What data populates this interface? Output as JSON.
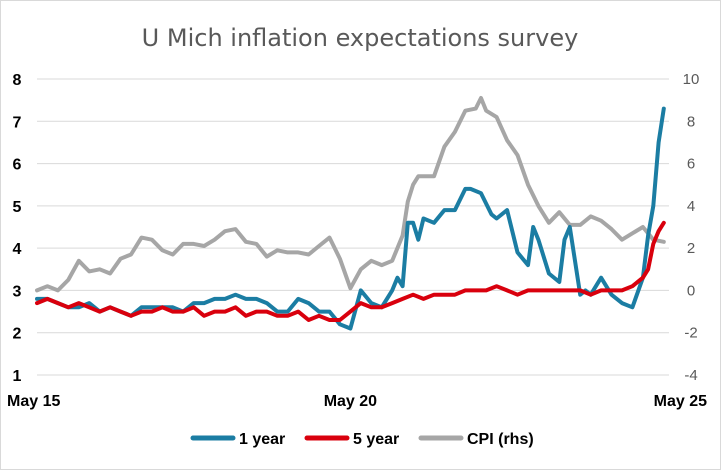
{
  "chart_data": {
    "type": "line",
    "title": "U Mich inflation expectations survey",
    "xlabel": "",
    "ylabel": "",
    "y2label": "",
    "grid": true,
    "legend_position": "bottom",
    "ylim": [
      1,
      8
    ],
    "y2lim": [
      -4,
      10
    ],
    "yticks": [
      "1",
      "2",
      "3",
      "4",
      "5",
      "6",
      "7",
      "8"
    ],
    "y2ticks": [
      "-4",
      "-2",
      "0",
      "2",
      "4",
      "6",
      "8",
      "10"
    ],
    "x_tick_labels": [
      "May 15",
      "May 20",
      "May 25"
    ],
    "x_tick_dates": [
      "2015-05",
      "2020-05",
      "2025-05"
    ],
    "x_range": [
      "2015-05",
      "2025-06"
    ],
    "series": [
      {
        "name": "1 year",
        "axis": "left",
        "color": "#1b7da3",
        "x": [
          "2015-05",
          "2015-07",
          "2015-09",
          "2015-11",
          "2016-01",
          "2016-03",
          "2016-05",
          "2016-07",
          "2016-09",
          "2016-11",
          "2017-01",
          "2017-03",
          "2017-05",
          "2017-07",
          "2017-09",
          "2017-11",
          "2018-01",
          "2018-03",
          "2018-05",
          "2018-07",
          "2018-09",
          "2018-11",
          "2019-01",
          "2019-03",
          "2019-05",
          "2019-07",
          "2019-09",
          "2019-11",
          "2020-01",
          "2020-03",
          "2020-05",
          "2020-07",
          "2020-09",
          "2020-11",
          "2021-01",
          "2021-02",
          "2021-03",
          "2021-04",
          "2021-05",
          "2021-06",
          "2021-07",
          "2021-09",
          "2021-11",
          "2022-01",
          "2022-03",
          "2022-04",
          "2022-06",
          "2022-08",
          "2022-09",
          "2022-11",
          "2023-01",
          "2023-03",
          "2023-04",
          "2023-05",
          "2023-07",
          "2023-09",
          "2023-10",
          "2023-11",
          "2024-01",
          "2024-02",
          "2024-03",
          "2024-05",
          "2024-07",
          "2024-09",
          "2024-11",
          "2025-01",
          "2025-02",
          "2025-03",
          "2025-04",
          "2025-05"
        ],
        "values": [
          2.8,
          2.8,
          2.7,
          2.6,
          2.6,
          2.7,
          2.5,
          2.6,
          2.5,
          2.4,
          2.6,
          2.6,
          2.6,
          2.6,
          2.5,
          2.7,
          2.7,
          2.8,
          2.8,
          2.9,
          2.8,
          2.8,
          2.7,
          2.5,
          2.5,
          2.8,
          2.7,
          2.5,
          2.5,
          2.2,
          2.1,
          3.0,
          2.7,
          2.6,
          3.0,
          3.3,
          3.1,
          4.6,
          4.6,
          4.2,
          4.7,
          4.6,
          4.9,
          4.9,
          5.4,
          5.4,
          5.3,
          4.8,
          4.7,
          4.9,
          3.9,
          3.6,
          4.5,
          4.2,
          3.4,
          3.2,
          4.2,
          4.5,
          2.9,
          3.0,
          2.9,
          3.3,
          2.9,
          2.7,
          2.6,
          3.3,
          4.3,
          5.0,
          6.5,
          7.3
        ]
      },
      {
        "name": "5 year",
        "axis": "left",
        "color": "#d9000d",
        "x": [
          "2015-05",
          "2015-07",
          "2015-09",
          "2015-11",
          "2016-01",
          "2016-03",
          "2016-05",
          "2016-07",
          "2016-09",
          "2016-11",
          "2017-01",
          "2017-03",
          "2017-05",
          "2017-07",
          "2017-09",
          "2017-11",
          "2018-01",
          "2018-03",
          "2018-05",
          "2018-07",
          "2018-09",
          "2018-11",
          "2019-01",
          "2019-03",
          "2019-05",
          "2019-07",
          "2019-09",
          "2019-11",
          "2020-01",
          "2020-03",
          "2020-05",
          "2020-07",
          "2020-09",
          "2020-11",
          "2021-01",
          "2021-03",
          "2021-05",
          "2021-07",
          "2021-09",
          "2021-11",
          "2022-01",
          "2022-03",
          "2022-05",
          "2022-07",
          "2022-09",
          "2022-11",
          "2023-01",
          "2023-03",
          "2023-05",
          "2023-07",
          "2023-09",
          "2023-11",
          "2024-01",
          "2024-03",
          "2024-05",
          "2024-07",
          "2024-09",
          "2024-11",
          "2025-01",
          "2025-02",
          "2025-03",
          "2025-04",
          "2025-05"
        ],
        "values": [
          2.7,
          2.8,
          2.7,
          2.6,
          2.7,
          2.6,
          2.5,
          2.6,
          2.5,
          2.4,
          2.5,
          2.5,
          2.6,
          2.5,
          2.5,
          2.6,
          2.4,
          2.5,
          2.5,
          2.6,
          2.4,
          2.5,
          2.5,
          2.4,
          2.4,
          2.5,
          2.3,
          2.4,
          2.3,
          2.3,
          2.5,
          2.7,
          2.6,
          2.6,
          2.7,
          2.8,
          2.9,
          2.8,
          2.9,
          2.9,
          2.9,
          3.0,
          3.0,
          3.0,
          3.1,
          3.0,
          2.9,
          3.0,
          3.0,
          3.0,
          3.0,
          3.0,
          3.0,
          2.9,
          3.0,
          3.0,
          3.0,
          3.1,
          3.3,
          3.5,
          4.1,
          4.4,
          4.6
        ]
      },
      {
        "name": "CPI (rhs)",
        "axis": "right",
        "color": "#a6a6a6",
        "x": [
          "2015-05",
          "2015-07",
          "2015-09",
          "2015-11",
          "2016-01",
          "2016-03",
          "2016-05",
          "2016-07",
          "2016-09",
          "2016-11",
          "2017-01",
          "2017-03",
          "2017-05",
          "2017-07",
          "2017-09",
          "2017-11",
          "2018-01",
          "2018-03",
          "2018-05",
          "2018-07",
          "2018-09",
          "2018-11",
          "2019-01",
          "2019-03",
          "2019-05",
          "2019-07",
          "2019-09",
          "2019-11",
          "2020-01",
          "2020-03",
          "2020-05",
          "2020-07",
          "2020-09",
          "2020-11",
          "2021-01",
          "2021-03",
          "2021-04",
          "2021-05",
          "2021-06",
          "2021-07",
          "2021-09",
          "2021-11",
          "2022-01",
          "2022-03",
          "2022-05",
          "2022-06",
          "2022-07",
          "2022-09",
          "2022-11",
          "2023-01",
          "2023-03",
          "2023-05",
          "2023-07",
          "2023-09",
          "2023-11",
          "2024-01",
          "2024-03",
          "2024-05",
          "2024-07",
          "2024-09",
          "2024-11",
          "2025-01",
          "2025-03",
          "2025-05"
        ],
        "values": [
          0.0,
          0.2,
          0.0,
          0.5,
          1.4,
          0.9,
          1.0,
          0.8,
          1.5,
          1.7,
          2.5,
          2.4,
          1.9,
          1.7,
          2.2,
          2.2,
          2.1,
          2.4,
          2.8,
          2.9,
          2.3,
          2.2,
          1.6,
          1.9,
          1.8,
          1.8,
          1.7,
          2.1,
          2.5,
          1.5,
          0.1,
          1.0,
          1.4,
          1.2,
          1.4,
          2.6,
          4.2,
          5.0,
          5.4,
          5.4,
          5.4,
          6.8,
          7.5,
          8.5,
          8.6,
          9.1,
          8.5,
          8.2,
          7.1,
          6.4,
          5.0,
          4.0,
          3.2,
          3.7,
          3.1,
          3.1,
          3.5,
          3.3,
          2.9,
          2.4,
          2.7,
          3.0,
          2.4,
          2.3
        ]
      }
    ]
  }
}
